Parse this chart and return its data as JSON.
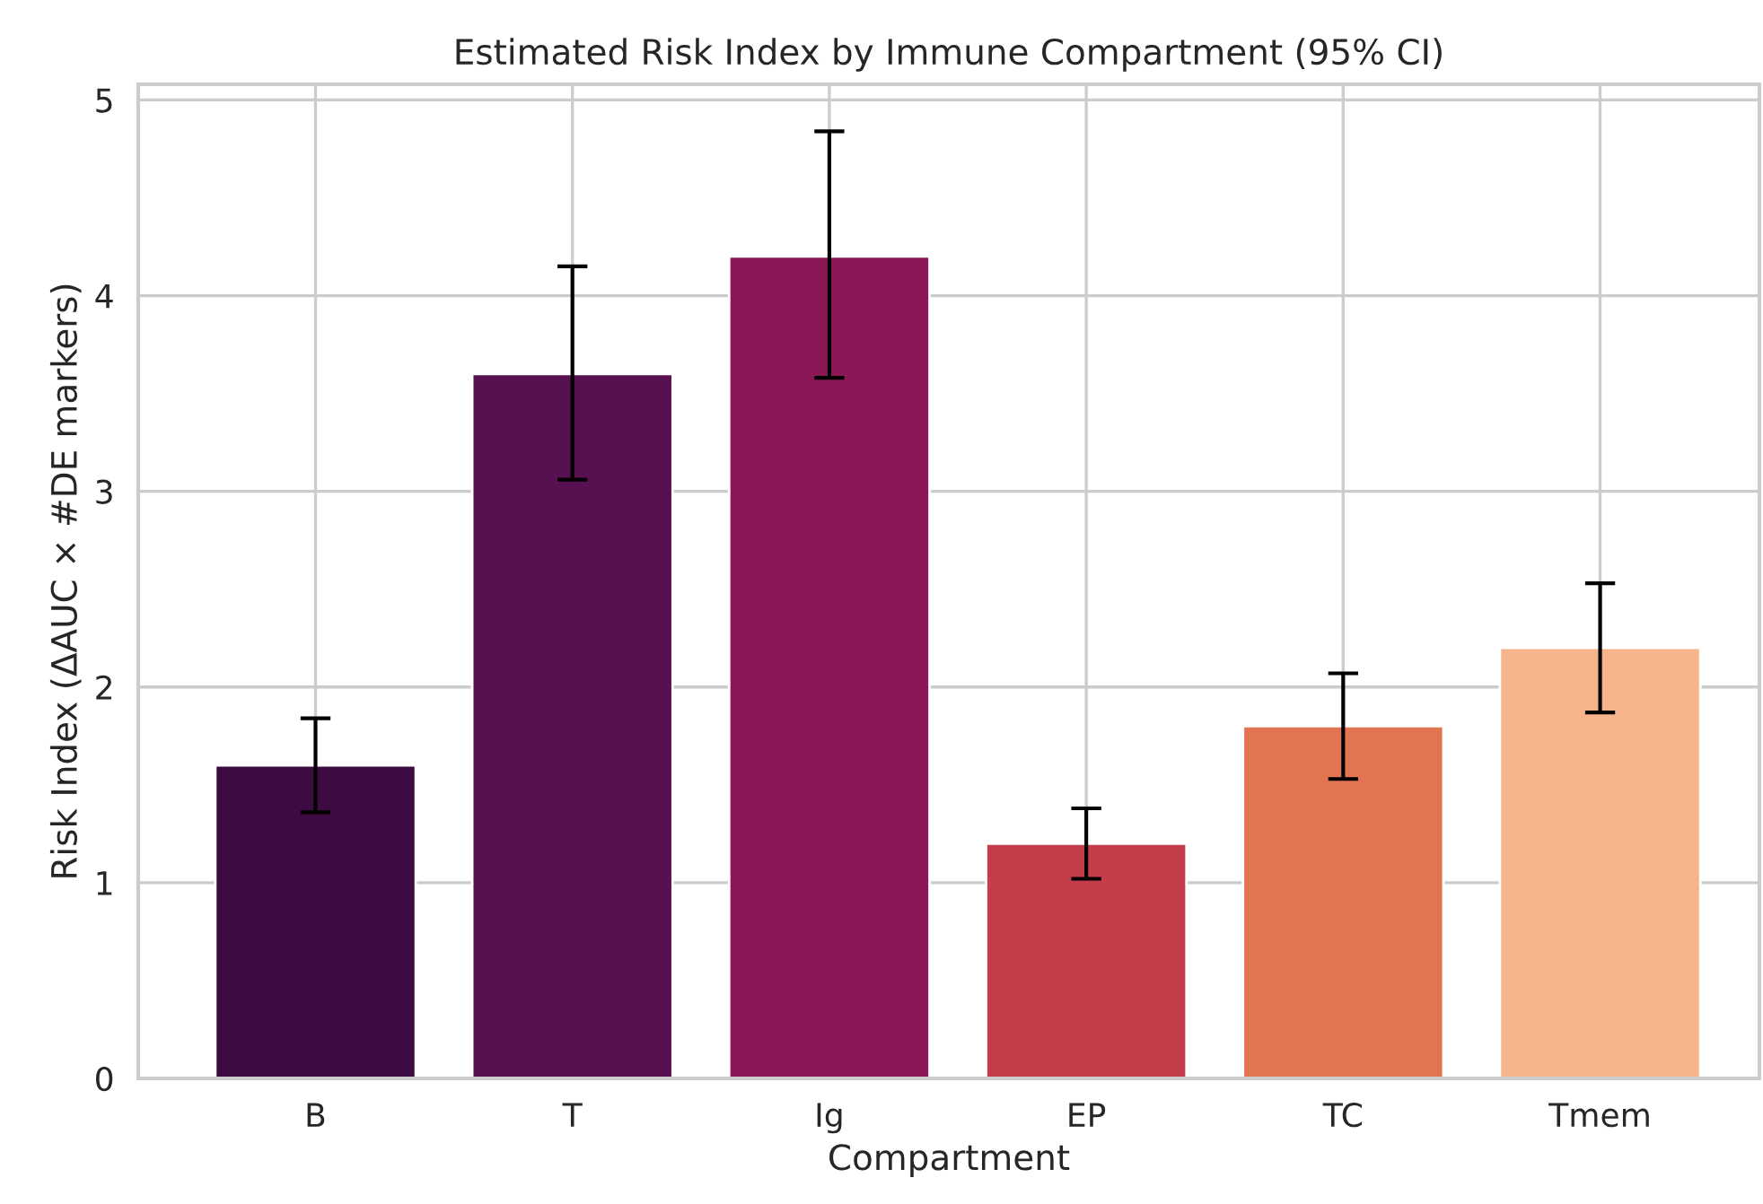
{
  "chart_data": {
    "type": "bar",
    "title": "Estimated Risk Index by Immune Compartment (95% CI)",
    "xlabel": "Compartment",
    "ylabel": "Risk Index (ΔAUC × #DE markers)",
    "categories": [
      "B",
      "T",
      "Ig",
      "EP",
      "TC",
      "Tmem"
    ],
    "values": [
      1.6,
      3.6,
      4.2,
      1.2,
      1.8,
      2.2
    ],
    "errors": [
      [
        1.36,
        1.84
      ],
      [
        3.06,
        4.15
      ],
      [
        3.58,
        4.84
      ],
      [
        1.02,
        1.38
      ],
      [
        1.53,
        2.07
      ],
      [
        1.87,
        2.53
      ]
    ],
    "colors": [
      "#3d0a41",
      "#581150",
      "#8b1757",
      "#c33d4b",
      "#e37452",
      "#f7b48b"
    ],
    "ylim": [
      0,
      5.08
    ],
    "yticks": [
      0,
      1,
      2,
      3,
      4,
      5
    ],
    "grid": true
  }
}
